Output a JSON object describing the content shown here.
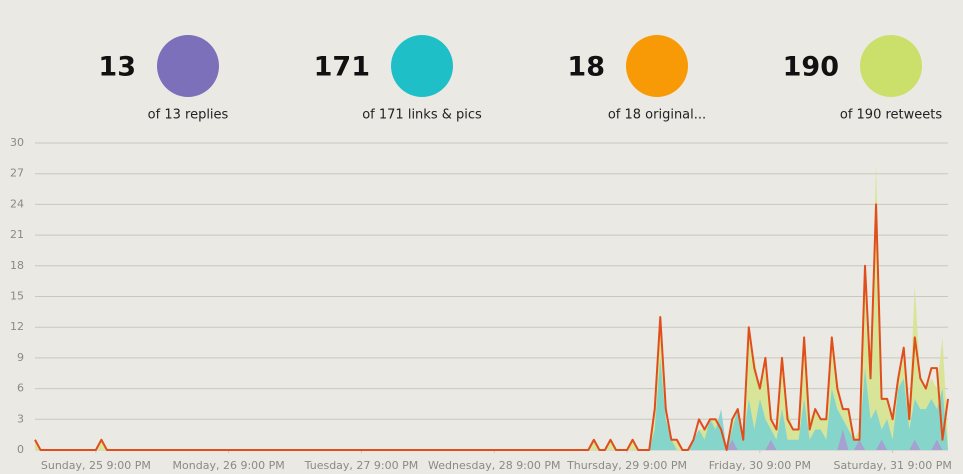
{
  "stats": [
    {
      "value": 13,
      "color": "#7b70b9",
      "label": "of 13 replies"
    },
    {
      "value": 171,
      "color": "#1fbfc8",
      "label": "of 171 links & pics"
    },
    {
      "value": 18,
      "color": "#f89a06",
      "label": "of 18 original..."
    },
    {
      "value": 190,
      "color": "#cbe06b",
      "label": "of 190 retweets"
    }
  ],
  "chart_data": {
    "type": "area",
    "x": [
      0,
      1,
      11,
      12,
      13,
      100,
      101,
      102,
      103,
      104,
      105,
      107,
      108,
      109,
      110,
      111,
      112,
      113,
      114,
      115,
      116,
      117,
      118,
      119,
      120,
      121,
      122,
      123,
      124,
      125,
      126,
      127,
      128,
      129,
      130,
      131,
      132,
      133,
      134,
      135,
      136,
      137,
      138,
      139,
      140,
      141,
      142,
      143,
      144,
      145,
      146,
      147,
      148,
      149,
      150,
      151,
      152,
      153,
      154,
      155,
      156,
      157,
      158,
      159,
      160,
      161,
      162,
      163,
      164,
      165
    ],
    "xlim": [
      0,
      165
    ],
    "xticks": [
      {
        "value": 11,
        "label": "Sunday, 25 9:00 PM"
      },
      {
        "value": 35,
        "label": "Monday, 26 9:00 PM"
      },
      {
        "value": 59,
        "label": "Tuesday, 27 9:00 PM"
      },
      {
        "value": 83,
        "label": "Wednesday, 28 9:00 PM"
      },
      {
        "value": 107,
        "label": "Thursday, 29 9:00 PM"
      },
      {
        "value": 131,
        "label": "Friday, 30 9:00 PM"
      },
      {
        "value": 155,
        "label": "Saturday, 31 9:00 PM"
      }
    ],
    "ylim": [
      0,
      30
    ],
    "yticks": [
      0,
      3,
      6,
      9,
      12,
      15,
      18,
      21,
      24,
      27,
      30
    ],
    "grid": true,
    "series": [
      {
        "color": "#d6e48f",
        "style": "area",
        "values": [
          1,
          0,
          0,
          1,
          0,
          0,
          1,
          0,
          0,
          1,
          0,
          0,
          1,
          0,
          0,
          0,
          3,
          12,
          3,
          1,
          1,
          0,
          0,
          1,
          2,
          2,
          3,
          3,
          2,
          0,
          3,
          4,
          1,
          11,
          9,
          6,
          8,
          3,
          2,
          8,
          4,
          2,
          2,
          10,
          3,
          4,
          3,
          3,
          10,
          7,
          4,
          4,
          1,
          2,
          17,
          8,
          28,
          5,
          5,
          3,
          7,
          9,
          4,
          16,
          7,
          6,
          7,
          6,
          11,
          1
        ]
      },
      {
        "color": "#7dd3cf",
        "style": "area",
        "values": [
          0,
          0,
          0,
          0,
          0,
          0,
          0,
          0,
          0,
          0,
          0,
          0,
          0,
          0,
          0,
          0,
          2,
          9,
          3,
          1,
          0,
          0,
          0,
          1,
          2,
          1,
          3,
          2,
          4,
          0,
          2,
          4,
          1,
          5,
          2,
          5,
          3,
          2,
          1,
          4,
          1,
          1,
          1,
          5,
          1,
          2,
          2,
          1,
          6,
          4,
          3,
          2,
          1,
          1,
          8,
          3,
          4,
          2,
          3,
          1,
          6,
          7,
          2,
          5,
          4,
          4,
          5,
          4,
          6,
          0
        ]
      },
      {
        "color": "#a89bd0",
        "style": "area",
        "values": [
          0,
          0,
          0,
          0,
          0,
          0,
          0,
          0,
          0,
          0,
          0,
          0,
          0,
          0,
          0,
          0,
          0,
          0,
          0,
          0,
          0,
          0,
          0,
          0,
          0,
          0,
          0,
          0,
          0,
          0,
          1,
          0,
          0,
          0,
          0,
          0,
          0,
          1,
          0,
          0,
          0,
          0,
          0,
          0,
          0,
          0,
          0,
          0,
          0,
          0,
          2,
          0,
          0,
          1,
          0,
          0,
          0,
          1,
          0,
          0,
          0,
          0,
          0,
          1,
          0,
          0,
          0,
          1,
          0,
          0
        ]
      },
      {
        "color": "#e04e1c",
        "style": "line",
        "values": [
          1,
          0,
          0,
          1,
          0,
          0,
          1,
          0,
          0,
          1,
          0,
          0,
          1,
          0,
          0,
          0,
          4,
          13,
          4,
          1,
          1,
          0,
          0,
          1,
          3,
          2,
          3,
          3,
          2,
          0,
          3,
          4,
          1,
          12,
          8,
          6,
          9,
          3,
          2,
          9,
          3,
          2,
          2,
          11,
          2,
          4,
          3,
          3,
          11,
          6,
          4,
          4,
          1,
          1,
          18,
          7,
          24,
          5,
          5,
          3,
          7,
          10,
          3,
          11,
          7,
          6,
          8,
          8,
          1,
          5
        ]
      }
    ]
  }
}
